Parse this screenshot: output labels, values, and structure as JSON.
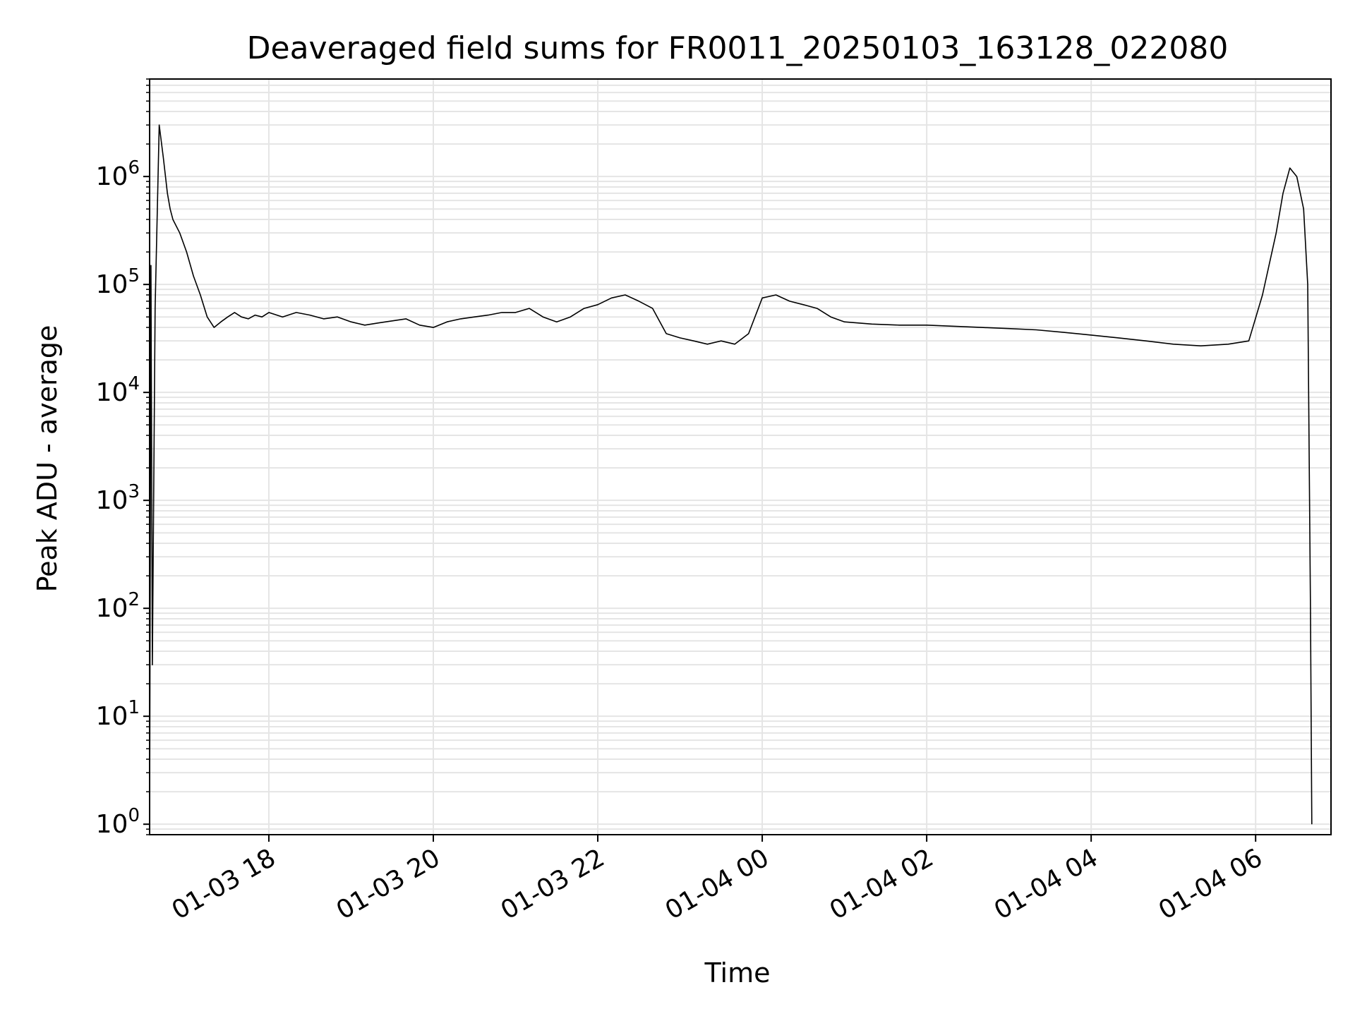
{
  "colors": {
    "line": "#000000",
    "grid": "#e5e5e5",
    "axes": "#000000",
    "background": "#ffffff"
  },
  "chart_data": {
    "type": "line",
    "title": "Deaveraged field sums for FR0011_20250103_163128_022080",
    "xlabel": "Time",
    "ylabel": "Peak ADU - average",
    "yscale": "log",
    "grid": true,
    "xlim": [
      "2025-01-03 16:33",
      "2025-01-04 06:55"
    ],
    "ylim": [
      0.8,
      8000000
    ],
    "x_ticks": [
      "2025-01-03 18:00",
      "2025-01-03 20:00",
      "2025-01-03 22:00",
      "2025-01-04 00:00",
      "2025-01-04 02:00",
      "2025-01-04 04:00",
      "2025-01-04 06:00"
    ],
    "x_tick_labels": [
      "01-03 18",
      "01-03 20",
      "01-03 22",
      "01-04 00",
      "01-04 02",
      "01-04 04",
      "01-04 06"
    ],
    "y_tick_labels": [
      {
        "base": "10",
        "exp": "0",
        "value": 1
      },
      {
        "base": "10",
        "exp": "1",
        "value": 10
      },
      {
        "base": "10",
        "exp": "2",
        "value": 100
      },
      {
        "base": "10",
        "exp": "3",
        "value": 1000
      },
      {
        "base": "10",
        "exp": "4",
        "value": 10000
      },
      {
        "base": "10",
        "exp": "5",
        "value": 100000
      },
      {
        "base": "10",
        "exp": "6",
        "value": 1000000
      }
    ],
    "series": [
      {
        "color": "#000000",
        "x": [
          "2025-01-03 16:33",
          "2025-01-03 16:34",
          "2025-01-03 16:35",
          "2025-01-03 16:37",
          "2025-01-03 16:40",
          "2025-01-03 16:43",
          "2025-01-03 16:46",
          "2025-01-03 16:48",
          "2025-01-03 16:50",
          "2025-01-03 16:55",
          "2025-01-03 17:00",
          "2025-01-03 17:05",
          "2025-01-03 17:10",
          "2025-01-03 17:15",
          "2025-01-03 17:20",
          "2025-01-03 17:25",
          "2025-01-03 17:30",
          "2025-01-03 17:35",
          "2025-01-03 17:40",
          "2025-01-03 17:45",
          "2025-01-03 17:50",
          "2025-01-03 17:55",
          "2025-01-03 18:00",
          "2025-01-03 18:10",
          "2025-01-03 18:20",
          "2025-01-03 18:30",
          "2025-01-03 18:40",
          "2025-01-03 18:50",
          "2025-01-03 19:00",
          "2025-01-03 19:10",
          "2025-01-03 19:20",
          "2025-01-03 19:30",
          "2025-01-03 19:40",
          "2025-01-03 19:50",
          "2025-01-03 20:00",
          "2025-01-03 20:10",
          "2025-01-03 20:20",
          "2025-01-03 20:30",
          "2025-01-03 20:40",
          "2025-01-03 20:50",
          "2025-01-03 21:00",
          "2025-01-03 21:10",
          "2025-01-03 21:20",
          "2025-01-03 21:30",
          "2025-01-03 21:40",
          "2025-01-03 21:50",
          "2025-01-03 22:00",
          "2025-01-03 22:10",
          "2025-01-03 22:20",
          "2025-01-03 22:30",
          "2025-01-03 22:40",
          "2025-01-03 22:50",
          "2025-01-03 23:00",
          "2025-01-03 23:10",
          "2025-01-03 23:20",
          "2025-01-03 23:30",
          "2025-01-03 23:40",
          "2025-01-03 23:50",
          "2025-01-04 00:00",
          "2025-01-04 00:10",
          "2025-01-04 00:20",
          "2025-01-04 00:30",
          "2025-01-04 00:40",
          "2025-01-04 00:50",
          "2025-01-04 01:00",
          "2025-01-04 01:20",
          "2025-01-04 01:40",
          "2025-01-04 02:00",
          "2025-01-04 02:20",
          "2025-01-04 02:40",
          "2025-01-04 03:00",
          "2025-01-04 03:20",
          "2025-01-04 03:40",
          "2025-01-04 04:00",
          "2025-01-04 04:20",
          "2025-01-04 04:40",
          "2025-01-04 05:00",
          "2025-01-04 05:20",
          "2025-01-04 05:40",
          "2025-01-04 05:55",
          "2025-01-04 06:05",
          "2025-01-04 06:15",
          "2025-01-04 06:20",
          "2025-01-04 06:25",
          "2025-01-04 06:30",
          "2025-01-04 06:35",
          "2025-01-04 06:38",
          "2025-01-04 06:40",
          "2025-01-04 06:41"
        ],
        "y": [
          1,
          150000,
          30,
          60000,
          3000000,
          1500000,
          700000,
          500000,
          400000,
          300000,
          200000,
          120000,
          80000,
          50000,
          40000,
          45000,
          50000,
          55000,
          50000,
          48000,
          52000,
          50000,
          55000,
          50000,
          55000,
          52000,
          48000,
          50000,
          45000,
          42000,
          44000,
          46000,
          48000,
          42000,
          40000,
          45000,
          48000,
          50000,
          52000,
          55000,
          55000,
          60000,
          50000,
          45000,
          50000,
          60000,
          65000,
          75000,
          80000,
          70000,
          60000,
          35000,
          32000,
          30000,
          28000,
          30000,
          28000,
          35000,
          75000,
          80000,
          70000,
          65000,
          60000,
          50000,
          45000,
          43000,
          42000,
          42000,
          41000,
          40000,
          39000,
          38000,
          36000,
          34000,
          32000,
          30000,
          28000,
          27000,
          28000,
          30000,
          80000,
          300000,
          700000,
          1200000,
          1000000,
          500000,
          100000,
          100,
          1
        ]
      }
    ]
  }
}
